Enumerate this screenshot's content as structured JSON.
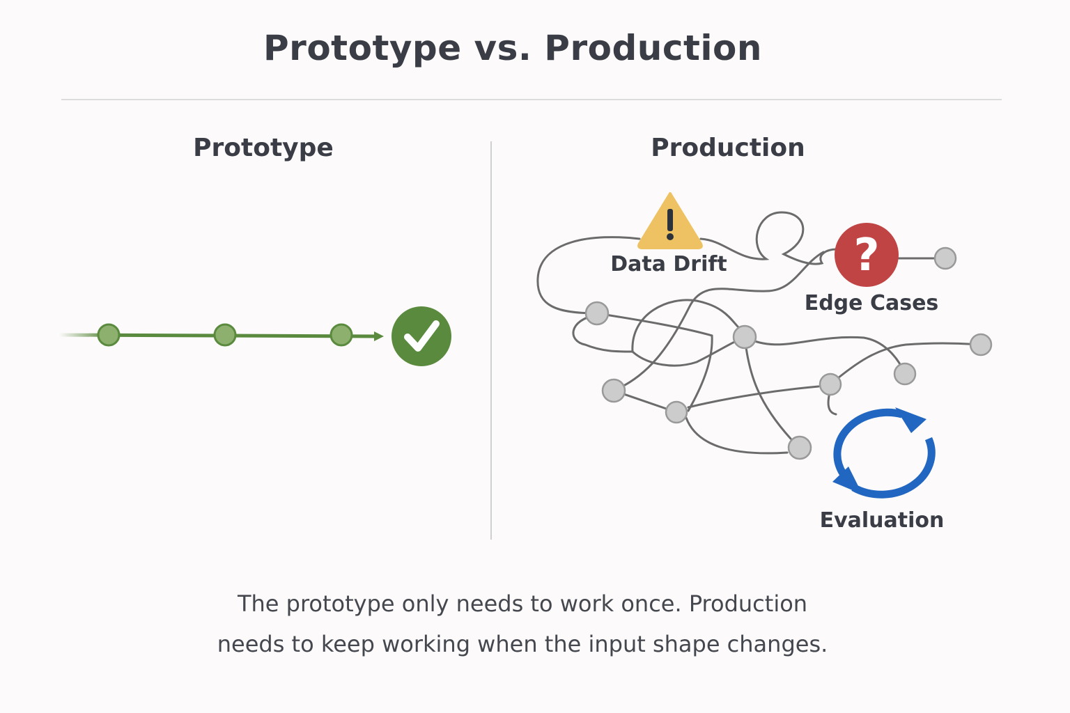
{
  "title": "Prototype vs. Production",
  "prototype": {
    "heading": "Prototype",
    "icon": "check-circle-icon",
    "color": "#5a8a3e"
  },
  "production": {
    "heading": "Production",
    "labels": {
      "data_drift": "Data Drift",
      "edge_cases": "Edge Cases",
      "evaluation": "Evaluation"
    },
    "icons": {
      "data_drift": "warning-triangle-icon",
      "edge_cases": "question-circle-icon",
      "evaluation": "refresh-cycle-icon"
    },
    "colors": {
      "warning": "#eec262",
      "edge": "#c04443",
      "evaluation": "#2166c0",
      "node": "#cccccc",
      "line": "#6b6b6b"
    }
  },
  "caption": {
    "line1": "The prototype only needs to work once. Production",
    "line2": "needs to keep working when the input shape changes."
  }
}
